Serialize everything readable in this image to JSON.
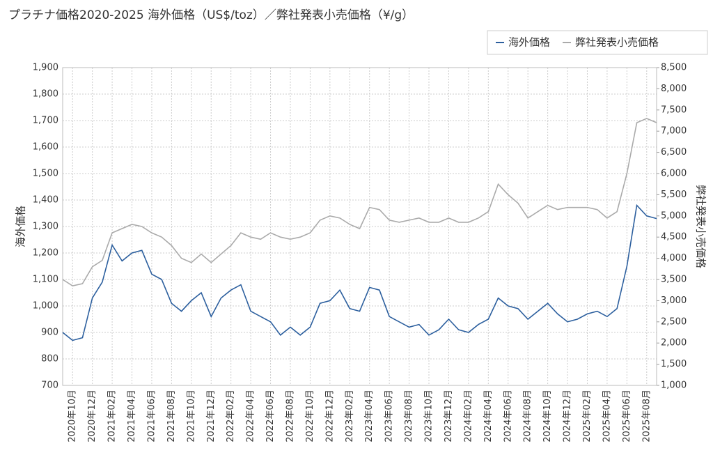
{
  "chart_data": {
    "type": "line",
    "title": "プラチナ価格2020-2025 海外価格（US$/toz）／弊社発表小売価格（¥/g）",
    "y_label": "海外価格",
    "y2_label": "弊社発表小売価格",
    "legend": "top-right",
    "grid": true,
    "categories": [
      null,
      "2020年10月",
      null,
      "2020年12月",
      null,
      "2021年02月",
      null,
      "2021年04月",
      null,
      "2021年06月",
      null,
      "2021年08月",
      null,
      "2021年10月",
      null,
      "2021年12月",
      null,
      "2022年02月",
      null,
      "2022年04月",
      null,
      "2022年06月",
      null,
      "2022年08月",
      null,
      "2022年10月",
      null,
      "2022年12月",
      null,
      "2023年02月",
      null,
      "2023年04月",
      null,
      "2023年06月",
      null,
      "2023年08月",
      null,
      "2023年10月",
      null,
      "2023年12月",
      null,
      "2024年02月",
      null,
      "2024年04月",
      null,
      "2024年06月",
      null,
      "2024年08月",
      null,
      "2024年10月",
      null,
      "2024年12月",
      null,
      "2025年02月",
      null,
      "2025年04月",
      null,
      "2025年06月",
      null,
      "2025年08月",
      null
    ],
    "ylim": [
      700,
      1900
    ],
    "yticks": [
      700,
      800,
      900,
      {
        "value": 1000,
        "label": "1,000"
      },
      {
        "value": 1100,
        "label": "1,100"
      },
      {
        "value": 1200,
        "label": "1,200"
      },
      {
        "value": 1300,
        "label": "1,300"
      },
      {
        "value": 1400,
        "label": "1,400"
      },
      {
        "value": 1500,
        "label": "1,500"
      },
      {
        "value": 1600,
        "label": "1,600"
      },
      {
        "value": 1700,
        "label": "1,700"
      },
      {
        "value": 1800,
        "label": "1,800"
      },
      {
        "value": 1900,
        "label": "1,900"
      }
    ],
    "y2lim": [
      1000,
      8500
    ],
    "y2ticks": [
      {
        "value": 1000,
        "label": "1,000"
      },
      {
        "value": 1500,
        "label": "1,500"
      },
      {
        "value": 2000,
        "label": "2,000"
      },
      {
        "value": 2500,
        "label": "2,500"
      },
      {
        "value": 3000,
        "label": "3,000"
      },
      {
        "value": 3500,
        "label": "3,500"
      },
      {
        "value": 4000,
        "label": "4,000"
      },
      {
        "value": 4500,
        "label": "4,500"
      },
      {
        "value": 5000,
        "label": "5,000"
      },
      {
        "value": 5500,
        "label": "5,500"
      },
      {
        "value": 6000,
        "label": "6,000"
      },
      {
        "value": 6500,
        "label": "6,500"
      },
      {
        "value": 7000,
        "label": "7,000"
      },
      {
        "value": 7500,
        "label": "7,500"
      },
      {
        "value": 8000,
        "label": "8,000"
      },
      {
        "value": 8500,
        "label": "8,500"
      }
    ],
    "series": [
      {
        "name": "海外価格",
        "color": "#2c5f9e",
        "values": [
          900,
          870,
          880,
          1030,
          1090,
          1230,
          1170,
          1200,
          1210,
          1120,
          1100,
          1010,
          980,
          1020,
          1050,
          960,
          1030,
          1060,
          1080,
          980,
          960,
          940,
          890,
          920,
          890,
          920,
          1010,
          1020,
          1060,
          990,
          980,
          1070,
          1060,
          960,
          940,
          920,
          930,
          890,
          910,
          950,
          910,
          900,
          930,
          950,
          1030,
          1000,
          990,
          950,
          980,
          1010,
          970,
          940,
          950,
          970,
          980,
          960,
          990,
          1150,
          1380,
          1340,
          1330
        ]
      },
      {
        "name": "弊社発表小売価格",
        "color": "#aaaaaa",
        "axis": "y2",
        "values": [
          3500,
          3350,
          3400,
          3800,
          3950,
          4600,
          4700,
          4800,
          4750,
          4600,
          4500,
          4300,
          4000,
          3900,
          4100,
          3900,
          4100,
          4300,
          4600,
          4500,
          4450,
          4600,
          4500,
          4450,
          4500,
          4600,
          4900,
          5000,
          4950,
          4800,
          4700,
          5200,
          5150,
          4900,
          4850,
          4900,
          4950,
          4850,
          4850,
          4950,
          4850,
          4850,
          4950,
          5100,
          5750,
          5500,
          5300,
          4950,
          5100,
          5250,
          5150,
          5200,
          5200,
          5200,
          5150,
          4950,
          5100,
          6000,
          7200,
          7300,
          7200
        ]
      }
    ]
  }
}
